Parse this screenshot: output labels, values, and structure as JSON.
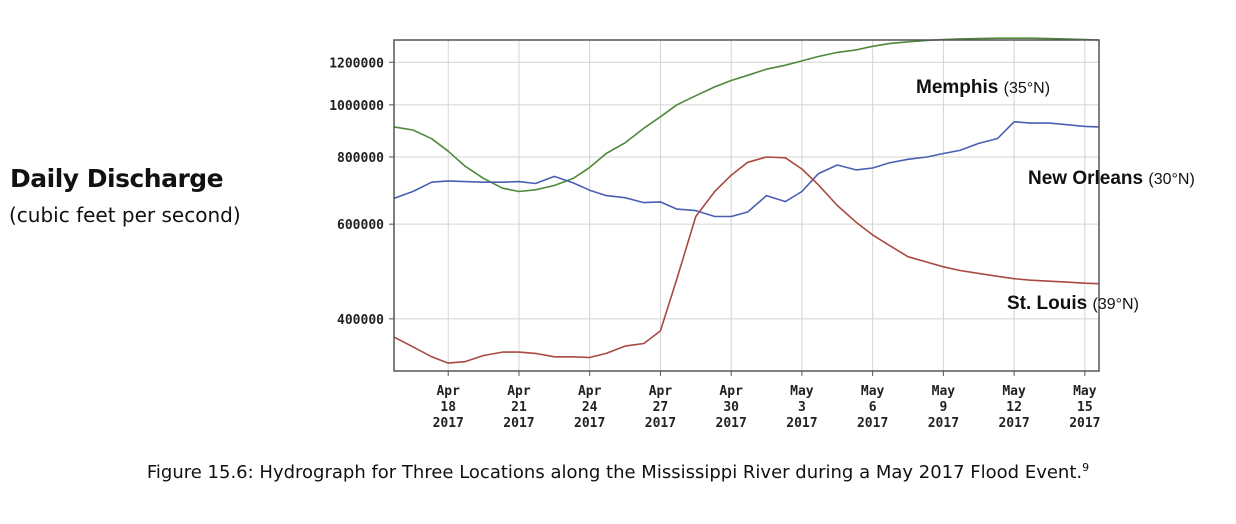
{
  "y_axis_title": "Daily Discharge",
  "y_axis_units": "(cubic feet per second)",
  "caption": "Figure 15.6: Hydrograph for Three Locations along the Mississippi River during a May 2017 Flood Event.",
  "caption_footnote": "9",
  "chart_data": {
    "type": "line",
    "y_scale": "log",
    "ylim": [
      320000,
      1320000
    ],
    "y_ticks": [
      400000,
      600000,
      800000,
      1000000,
      1200000
    ],
    "y_tick_labels": [
      "400000",
      "600000",
      "800000",
      "1000000",
      "1200000"
    ],
    "x_tick_labels": [
      [
        "Apr",
        "18",
        "2017"
      ],
      [
        "Apr",
        "21",
        "2017"
      ],
      [
        "Apr",
        "24",
        "2017"
      ],
      [
        "Apr",
        "27",
        "2017"
      ],
      [
        "Apr",
        "30",
        "2017"
      ],
      [
        "May",
        "3",
        "2017"
      ],
      [
        "May",
        "6",
        "2017"
      ],
      [
        "May",
        "9",
        "2017"
      ],
      [
        "May",
        "12",
        "2017"
      ],
      [
        "May",
        "15",
        "2017"
      ]
    ],
    "x_tick_days": [
      18,
      21,
      24,
      27,
      30,
      33,
      36,
      39,
      42,
      45
    ],
    "x_range_days": [
      15.7,
      45.6
    ],
    "x_note": "days counted from Apr 1, 2017 (May 3 = 33)",
    "grid": true,
    "series": [
      {
        "name": "Memphis",
        "latitude": "(35°N)",
        "color": "#4e8a3a",
        "x": [
          15.7,
          16.5,
          17.3,
          18,
          18.7,
          19.5,
          20.3,
          21,
          21.7,
          22.5,
          23.3,
          24,
          24.7,
          25.5,
          26.3,
          27,
          27.7,
          28.5,
          29.3,
          30,
          30.7,
          31.5,
          32.3,
          33,
          33.7,
          34.5,
          35.3,
          36,
          36.7,
          37.5,
          38.3,
          39,
          39.7,
          40.5,
          41.3,
          42,
          42.7,
          43.5,
          44.3,
          45,
          45.6
        ],
        "y": [
          910000,
          898000,
          865000,
          820000,
          770000,
          730000,
          700000,
          690000,
          695000,
          708000,
          730000,
          765000,
          812000,
          850000,
          905000,
          950000,
          1000000,
          1040000,
          1080000,
          1110000,
          1135000,
          1165000,
          1185000,
          1207000,
          1230000,
          1252000,
          1265000,
          1285000,
          1300000,
          1310000,
          1318000,
          1322000,
          1326000,
          1328000,
          1330000,
          1330000,
          1330000,
          1328000,
          1325000,
          1322000,
          1320000
        ]
      },
      {
        "name": "New Orleans",
        "latitude": "(30°N)",
        "color": "#4a5fb0",
        "x": [
          15.7,
          16.5,
          17.3,
          18,
          18.7,
          19.5,
          20.3,
          21,
          21.7,
          22.5,
          23.3,
          24,
          24.7,
          25.5,
          26.3,
          27,
          27.7,
          28.5,
          29.3,
          30,
          30.7,
          31.5,
          32.3,
          33,
          33.7,
          34.5,
          35.3,
          36,
          36.7,
          37.5,
          38.3,
          39,
          39.7,
          40.5,
          41.3,
          42,
          42.7,
          43.5,
          44.3,
          45,
          45.6
        ],
        "y": [
          670000,
          690000,
          718000,
          722000,
          720000,
          718000,
          718000,
          720000,
          714000,
          736000,
          716000,
          694000,
          678000,
          672000,
          658000,
          660000,
          640000,
          636000,
          620000,
          620000,
          632000,
          678000,
          661000,
          690000,
          745000,
          773000,
          757000,
          763000,
          780000,
          792000,
          800000,
          812000,
          823000,
          848000,
          866000,
          930000,
          925000,
          925000,
          918000,
          912000,
          910000
        ]
      },
      {
        "name": "St. Louis",
        "latitude": "(39°N)",
        "color": "#a84a42",
        "x": [
          15.7,
          16.5,
          17.3,
          18,
          18.7,
          19.5,
          20.3,
          21,
          21.7,
          22.5,
          23.3,
          24,
          24.7,
          25.5,
          26.3,
          27,
          27.7,
          28.5,
          29.3,
          30,
          30.7,
          31.5,
          32.3,
          33,
          33.7,
          34.5,
          35.3,
          36,
          36.7,
          37.5,
          38.3,
          39,
          39.7,
          40.5,
          41.3,
          42,
          42.7,
          43.5,
          44.3,
          45,
          45.6
        ],
        "y": [
          370000,
          355000,
          340000,
          331000,
          333000,
          342000,
          347000,
          347000,
          345000,
          340000,
          340000,
          339000,
          345000,
          356000,
          360000,
          380000,
          475000,
          620000,
          690000,
          740000,
          782000,
          800000,
          797000,
          760000,
          710000,
          650000,
          605000,
          573000,
          548000,
          522000,
          510000,
          500000,
          492000,
          486000,
          480000,
          475000,
          472000,
          470000,
          468000,
          466000,
          465000
        ]
      }
    ]
  }
}
